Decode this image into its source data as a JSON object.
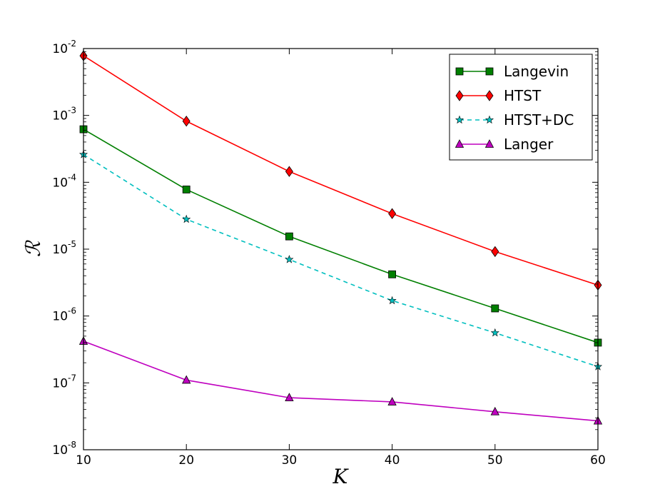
{
  "chart_data": {
    "type": "line",
    "xlabel": "K",
    "ylabel": "ℛ",
    "xlim": [
      10,
      60
    ],
    "ylim": [
      1e-08,
      0.01
    ],
    "yscale": "log",
    "grid": false,
    "legend_location": "top-right",
    "x": [
      10,
      20,
      30,
      40,
      50,
      60
    ],
    "x_ticks": [
      "10",
      "20",
      "30",
      "40",
      "50",
      "60"
    ],
    "y_ticks": [
      {
        "base": "10",
        "exp": "-8",
        "value": 1e-08
      },
      {
        "base": "10",
        "exp": "-7",
        "value": 1e-07
      },
      {
        "base": "10",
        "exp": "-6",
        "value": 1e-06
      },
      {
        "base": "10",
        "exp": "-5",
        "value": 1e-05
      },
      {
        "base": "10",
        "exp": "-4",
        "value": 0.0001
      },
      {
        "base": "10",
        "exp": "-3",
        "value": 0.001
      },
      {
        "base": "10",
        "exp": "-2",
        "value": 0.01
      }
    ],
    "series": [
      {
        "name": "Langevin",
        "color": "#007f00",
        "marker": "square",
        "line": "solid",
        "values": [
          0.00062,
          7.8e-05,
          1.55e-05,
          4.2e-06,
          1.3e-06,
          4e-07
        ]
      },
      {
        "name": "HTST",
        "color": "#ff0000",
        "marker": "diamond",
        "line": "solid",
        "values": [
          0.0078,
          0.00082,
          0.000145,
          3.4e-05,
          9.2e-06,
          2.9e-06
        ]
      },
      {
        "name": "HTST+DC",
        "color": "#00bfbf",
        "marker": "star",
        "line": "dashed",
        "values": [
          0.00026,
          2.8e-05,
          7e-06,
          1.7e-06,
          5.6e-07,
          1.75e-07
        ]
      },
      {
        "name": "Langer",
        "color": "#bf00bf",
        "marker": "triangle",
        "line": "solid",
        "values": [
          4.2e-07,
          1.1e-07,
          6e-08,
          5.2e-08,
          3.7e-08,
          2.7e-08
        ]
      }
    ]
  }
}
